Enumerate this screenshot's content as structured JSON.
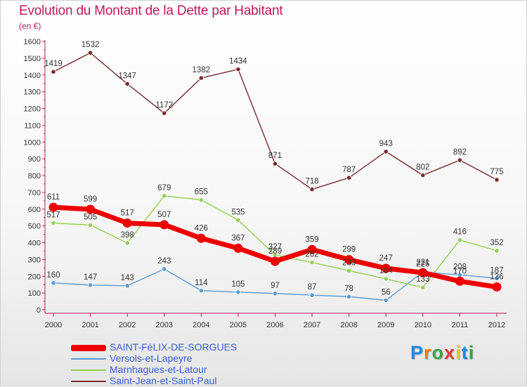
{
  "title": "Evolution du Montant de la Dette par Habitant",
  "subtitle": "(en €)",
  "brand": {
    "letters": [
      "P",
      "r",
      "o",
      "x",
      "i",
      "t",
      "i"
    ],
    "colors": [
      "#1e88e5",
      "#f57c00",
      "#43a047",
      "#e53935",
      "#fbc02d",
      "#1e88e5",
      "#43a047"
    ]
  },
  "chart_data": {
    "type": "line",
    "title": "Evolution du Montant de la Dette par Habitant",
    "subtitle": "(en €)",
    "xlabel": "",
    "ylabel": "",
    "x": [
      "2000",
      "2001",
      "2002",
      "2003",
      "2004",
      "2005",
      "2006",
      "2007",
      "2008",
      "2009",
      "2010",
      "2011",
      "2012"
    ],
    "ylim": [
      0,
      1600
    ],
    "yticks": [
      0,
      100,
      200,
      300,
      400,
      500,
      600,
      700,
      800,
      900,
      1000,
      1100,
      1200,
      1300,
      1400,
      1500,
      1600
    ],
    "grid": false,
    "legend_position": "bottom-left",
    "series": [
      {
        "name": "SAINT-FéLIX-DE-SORGUES",
        "color": "#ee0000",
        "thick": true,
        "values": [
          611,
          599,
          517,
          507,
          426,
          367,
          289,
          359,
          299,
          247,
          221,
          170,
          136
        ],
        "labels": [
          "611",
          "599",
          "517",
          "507",
          "426",
          "367",
          "289",
          "359",
          "299",
          "247",
          "221",
          "170",
          "136"
        ]
      },
      {
        "name": "Versols-et-Lapeyre",
        "color": "#5b9bd5",
        "thick": false,
        "values": [
          160,
          147,
          143,
          243,
          114,
          105,
          97,
          87,
          78,
          56,
          225,
          208,
          187
        ],
        "labels": [
          "160",
          "147",
          "143",
          "243",
          "114",
          "105",
          "97",
          "87",
          "78",
          "56",
          "225",
          "208",
          "187"
        ]
      },
      {
        "name": "Marnhagues-et-Latour",
        "color": "#92d050",
        "thick": false,
        "values": [
          517,
          505,
          398,
          679,
          655,
          535,
          327,
          282,
          233,
          184,
          133,
          416,
          352
        ],
        "labels": [
          "517",
          "505",
          "398",
          "679",
          "655",
          "535",
          "327",
          "282",
          "233",
          "184",
          "133",
          "416",
          "352"
        ]
      },
      {
        "name": "Saint-Jean-et-Saint-Paul",
        "color": "#7b2c2c",
        "thick": false,
        "values": [
          1419,
          1532,
          1347,
          1172,
          1382,
          1434,
          871,
          718,
          787,
          943,
          802,
          892,
          775
        ],
        "labels": [
          "1419",
          "1532",
          "1347",
          "1172",
          "1382",
          "1434",
          "871",
          "718",
          "787",
          "943",
          "802",
          "892",
          "775"
        ]
      }
    ]
  }
}
